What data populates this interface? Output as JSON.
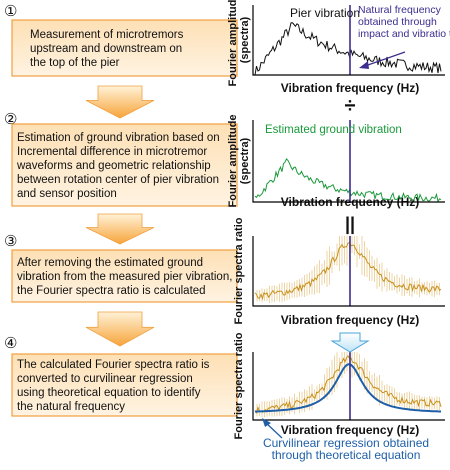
{
  "steps": [
    {
      "number": "①",
      "lines": [
        "Measurement of microtremors",
        "upstream and downstream on",
        "the top of the pier"
      ]
    },
    {
      "number": "②",
      "lines": [
        "Estimation of ground vibration based on",
        "Incremental difference in microtremor",
        "waveforms and geometric relationship",
        "between rotation center of pier vibration",
        "and sensor position"
      ]
    },
    {
      "number": "③",
      "lines": [
        "After removing the estimated ground",
        "vibration from the measured pier vibration,",
        "the Fourier spectra ratio is calculated"
      ]
    },
    {
      "number": "④",
      "lines": [
        "The calculated Fourier spectra ratio is",
        "converted to curvilinear regression",
        "using theoretical equation to identify",
        "the natural frequency"
      ]
    }
  ],
  "plots": [
    {
      "y_label": [
        "Fourier amplitude",
        "(spectra)"
      ],
      "x_label": "Vibration frequency (Hz)",
      "annotations": [
        [
          "Pier vibration"
        ],
        [
          "Natural frequency",
          "obtained through",
          "impact and vibratio tests"
        ]
      ]
    },
    {
      "y_label": [
        "Fourier amplitude",
        "(spectra)"
      ],
      "x_label": "Vibration frequency (Hz)",
      "annotations": [
        [
          "Estimated ground vibration"
        ]
      ]
    },
    {
      "y_label": [
        "Fourier spectra ratio"
      ],
      "x_label": "Vibration frequency (Hz)",
      "annotations": []
    },
    {
      "y_label": [
        "Fourier spectra ratio"
      ],
      "x_label": "Vibration frequency (Hz)",
      "annotations": [
        [
          "Curvilinear regression obtained",
          "through theoretical equation"
        ]
      ]
    }
  ],
  "operators": [
    "÷",
    "||"
  ]
}
